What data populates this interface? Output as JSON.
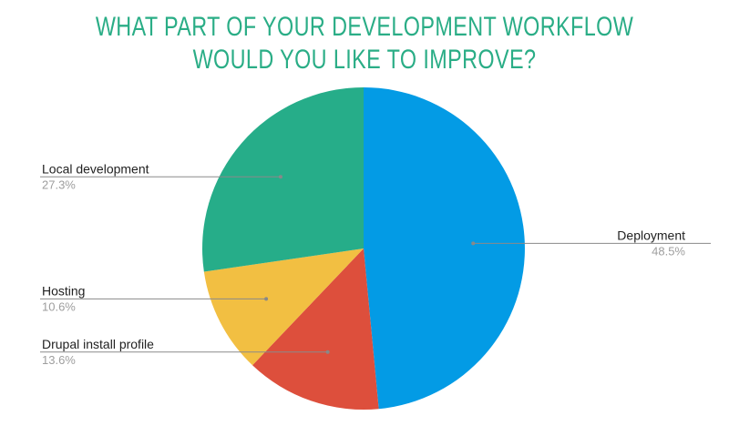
{
  "chart_data": {
    "type": "pie",
    "title": [
      "WHAT PART OF YOUR DEVELOPMENT WORKFLOW",
      "WOULD YOU LIKE TO IMPROVE?"
    ],
    "start_angle_deg": 0,
    "direction": "clockwise",
    "slices": [
      {
        "label": "Deployment",
        "value": 48.5,
        "display": "48.5%",
        "color": "#039be5",
        "label_side": "right"
      },
      {
        "label": "Drupal install profile",
        "value": 13.6,
        "display": "13.6%",
        "color": "#dd4f3c",
        "label_side": "left"
      },
      {
        "label": "Hosting",
        "value": 10.6,
        "display": "10.6%",
        "color": "#f2bf42",
        "label_side": "left"
      },
      {
        "label": "Local development",
        "value": 27.3,
        "display": "27.3%",
        "color": "#26ad89",
        "label_side": "left"
      }
    ]
  }
}
